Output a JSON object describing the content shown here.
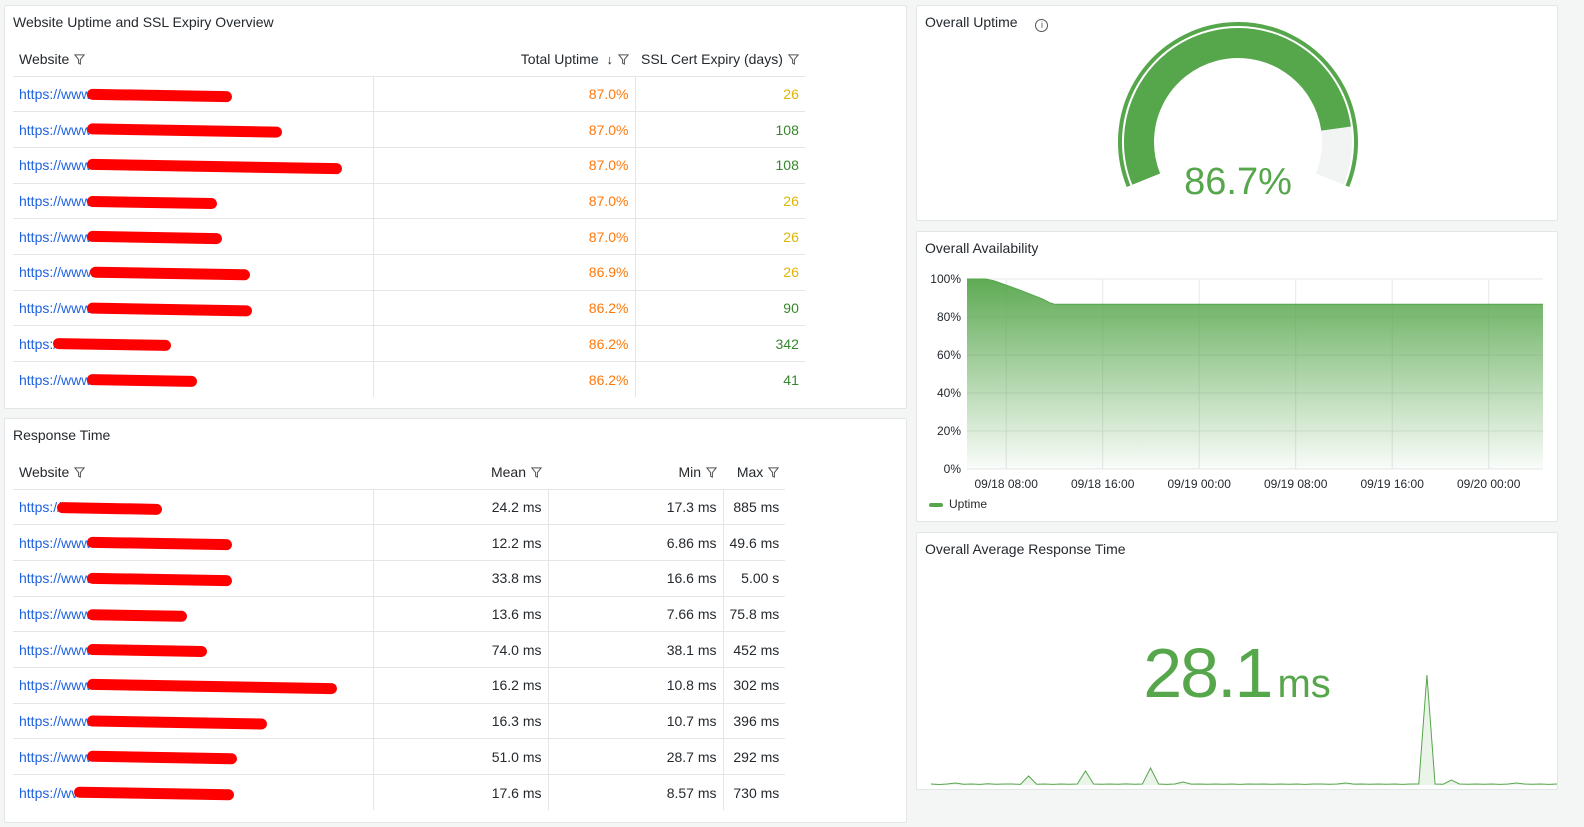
{
  "uptime_table": {
    "title": "Website Uptime and SSL Expiry Overview",
    "columns": [
      "Website",
      "Total Uptime",
      "SSL Cert Expiry (days)"
    ],
    "rows": [
      {
        "website": "https://www",
        "uptime": "87.0%",
        "ssl": "26",
        "ssl_color": "yellow"
      },
      {
        "website": "https://www",
        "uptime": "87.0%",
        "ssl": "108",
        "ssl_color": "green"
      },
      {
        "website": "https://www",
        "uptime": "87.0%",
        "ssl": "108",
        "ssl_color": "green"
      },
      {
        "website": "https://www",
        "uptime": "87.0%",
        "ssl": "26",
        "ssl_color": "yellow"
      },
      {
        "website": "https://www",
        "uptime": "87.0%",
        "ssl": "26",
        "ssl_color": "yellow"
      },
      {
        "website": "https://www.",
        "uptime": "86.9%",
        "ssl": "26",
        "ssl_color": "yellow"
      },
      {
        "website": "https://www",
        "uptime": "86.2%",
        "ssl": "90",
        "ssl_color": "green"
      },
      {
        "website": "https:/",
        "uptime": "86.2%",
        "ssl": "342",
        "ssl_color": "green"
      },
      {
        "website": "https://www",
        "uptime": "86.2%",
        "ssl": "41",
        "ssl_color": "green"
      }
    ]
  },
  "response_table": {
    "title": "Response Time",
    "columns": [
      "Website",
      "Mean",
      "Min",
      "Max"
    ],
    "rows": [
      {
        "website": "https://",
        "mean": "24.2 ms",
        "min": "17.3 ms",
        "max": "885 ms"
      },
      {
        "website": "https://www",
        "mean": "12.2 ms",
        "min": "6.86 ms",
        "max": "49.6 ms"
      },
      {
        "website": "https://www",
        "mean": "33.8 ms",
        "min": "16.6 ms",
        "max": "5.00 s"
      },
      {
        "website": "https://www",
        "mean": "13.6 ms",
        "min": "7.66 ms",
        "max": "75.8 ms"
      },
      {
        "website": "https://www",
        "mean": "74.0 ms",
        "min": "38.1 ms",
        "max": "452 ms"
      },
      {
        "website": "https://www",
        "mean": "16.2 ms",
        "min": "10.8 ms",
        "max": "302 ms"
      },
      {
        "website": "https://www",
        "mean": "16.3 ms",
        "min": "10.7 ms",
        "max": "396 ms"
      },
      {
        "website": "https://www",
        "mean": "51.0 ms",
        "min": "28.7 ms",
        "max": "292 ms"
      },
      {
        "website": "https://wv",
        "mean": "17.6 ms",
        "min": "8.57 ms",
        "max": "730 ms"
      }
    ]
  },
  "gauge": {
    "title": "Overall Uptime",
    "value_text": "86.7%",
    "value": 86.7,
    "min": 0,
    "max": 100,
    "threshold": 95,
    "color": "#56a64b"
  },
  "response_stat": {
    "title": "Overall Average Response Time",
    "value": "28.1",
    "unit": "ms"
  },
  "colors": {
    "green": "#56a64b",
    "orange": "#ff780a",
    "yellow": "#e0b400",
    "link": "#1f62e0"
  },
  "chart_data": {
    "type": "area",
    "title": "Overall Availability",
    "legend": [
      "Uptime"
    ],
    "legend_position": "bottom-left",
    "yticks": [
      "0%",
      "20%",
      "40%",
      "60%",
      "80%",
      "100%"
    ],
    "ylim": [
      0,
      100
    ],
    "xticks": [
      {
        "label": "09/18 08:00",
        "h": 8
      },
      {
        "label": "09/18 16:00",
        "h": 16
      },
      {
        "label": "09/19 00:00",
        "h": 24
      },
      {
        "label": "09/19 08:00",
        "h": 32
      },
      {
        "label": "09/19 16:00",
        "h": 40
      },
      {
        "label": "09/20 00:00",
        "h": 48
      }
    ],
    "xlim_hours": [
      4.75,
      52.5
    ],
    "series": [
      {
        "name": "Uptime",
        "x_hours": [
          4.75,
          6.3,
          7,
          8,
          9,
          10,
          11,
          11.6,
          12,
          52.5
        ],
        "values": [
          100,
          100,
          99,
          96.8,
          94.5,
          92,
          89.5,
          87.5,
          86.7,
          86.7
        ]
      }
    ]
  },
  "sparkline": {
    "values": [
      1,
      0.5,
      1,
      2,
      0.8,
      1,
      0.6,
      1.2,
      0.7,
      1,
      1,
      0.6,
      9,
      0.8,
      1,
      0.6,
      1,
      0.7,
      1,
      14,
      1,
      0.7,
      1,
      0.8,
      1.1,
      0.7,
      1,
      17,
      1,
      0.6,
      1,
      3,
      0.9,
      1,
      0.7,
      1,
      0.8,
      1,
      0.6,
      1,
      0.9,
      1,
      0.7,
      1,
      0.8,
      1,
      0.6,
      1,
      1,
      0.7,
      1,
      2,
      0.9,
      1,
      0.8,
      1,
      0.7,
      1,
      0.6,
      1,
      1,
      110,
      1,
      0.8,
      5,
      1,
      0.7,
      1,
      0.8,
      1,
      0.6,
      1,
      2,
      1,
      0.8,
      1,
      0.6,
      1
    ]
  }
}
